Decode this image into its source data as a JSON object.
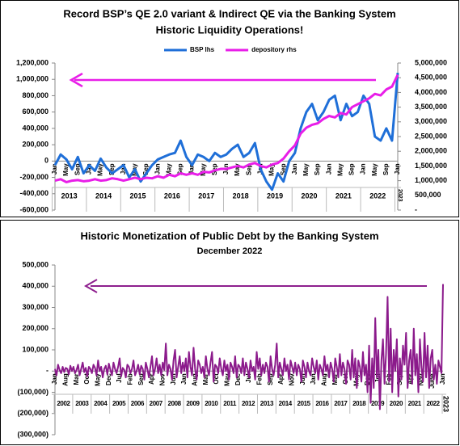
{
  "chart_data": [
    {
      "type": "line",
      "title": "Record BSP’s QE 2.0 variant & Indirect QE via the Banking System",
      "subtitle": "Historic Liquidity Operations!",
      "categories": [
        "Jan",
        null,
        "May",
        null,
        "Sep",
        null,
        "Jan",
        null,
        "May",
        null,
        "Sep",
        null,
        "Jan",
        null,
        "May",
        null,
        "Sep",
        null,
        "Jan",
        null,
        "May",
        null,
        "Sep",
        null,
        "Jan",
        null,
        "May",
        null,
        "Sep",
        null,
        "Jan",
        null,
        "May",
        null,
        "Sep",
        null,
        "Jan",
        null,
        "May",
        null,
        "Sep",
        null,
        "Jan",
        null,
        "May",
        null,
        "Sep",
        null,
        "Jan",
        null,
        "May",
        null,
        "Sep",
        null,
        "Jan",
        null,
        "May",
        null,
        "Sep",
        null,
        "Jan"
      ],
      "year_labels": [
        "2013",
        "2014",
        "2015",
        "2016",
        "2017",
        "2018",
        "2019",
        "2020",
        "2021",
        "2022",
        "2023"
      ],
      "series": [
        {
          "name": "BSP lhs",
          "color": "#1f6fd8",
          "axis": "y",
          "values": [
            -50000,
            80000,
            20000,
            -100000,
            50000,
            -150000,
            -50000,
            -120000,
            30000,
            -80000,
            -150000,
            -100000,
            -50000,
            -200000,
            -100000,
            -250000,
            -150000,
            -50000,
            20000,
            50000,
            80000,
            100000,
            250000,
            50000,
            -50000,
            80000,
            50000,
            0,
            100000,
            50000,
            80000,
            150000,
            200000,
            50000,
            100000,
            220000,
            -100000,
            -250000,
            -350000,
            -150000,
            -250000,
            0,
            100000,
            400000,
            600000,
            700000,
            500000,
            600000,
            750000,
            800000,
            500000,
            700000,
            550000,
            600000,
            800000,
            700000,
            300000,
            250000,
            400000,
            250000,
            1080000
          ]
        },
        {
          "name": "depository rhs",
          "color": "#e81ee8",
          "axis": "y2",
          "values": [
            1000000,
            1050000,
            950000,
            1000000,
            1020000,
            980000,
            1000000,
            1050000,
            1000000,
            1020000,
            1080000,
            1050000,
            1000000,
            1050000,
            1100000,
            1050000,
            1100000,
            1080000,
            1150000,
            1100000,
            1200000,
            1150000,
            1250000,
            1200000,
            1250000,
            1200000,
            1300000,
            1280000,
            1350000,
            1400000,
            1400000,
            1450000,
            1500000,
            1450000,
            1550000,
            1600000,
            1500000,
            1450000,
            1550000,
            1600000,
            1750000,
            2000000,
            2200000,
            2600000,
            2800000,
            2900000,
            2950000,
            3100000,
            3200000,
            3150000,
            3300000,
            3250000,
            3500000,
            3600000,
            3700000,
            3800000,
            3950000,
            3900000,
            4100000,
            4200000,
            4600000
          ]
        }
      ],
      "ylim": [
        -600000,
        1200000
      ],
      "yticks": [
        {
          "value": -600000,
          "label": "-600,000"
        },
        {
          "value": -400000,
          "label": "-400,000"
        },
        {
          "value": -200000,
          "label": "-200,000"
        },
        0,
        {
          "value": 200000,
          "label": "200,000"
        },
        {
          "value": 400000,
          "label": "400,000"
        },
        {
          "value": 600000,
          "label": "600,000"
        },
        {
          "value": 800000,
          "label": "800,000"
        },
        {
          "value": 1000000,
          "label": "1,000,000"
        },
        {
          "value": 1200000,
          "label": "1,200,000"
        }
      ],
      "y2lim": [
        0,
        5000000
      ],
      "y2ticks": [
        {
          "value": 0,
          "label": "-"
        },
        {
          "value": 500000,
          "label": "500,000"
        },
        {
          "value": 1000000,
          "label": "1,000,000"
        },
        {
          "value": 1500000,
          "label": "1,500,000"
        },
        {
          "value": 2000000,
          "label": "2,000,000"
        },
        {
          "value": 2500000,
          "label": "2,500,000"
        },
        {
          "value": 3000000,
          "label": "3,000,000"
        },
        {
          "value": 3500000,
          "label": "3,500,000"
        },
        {
          "value": 4000000,
          "label": "4,000,000"
        },
        {
          "value": 4500000,
          "label": "4,500,000"
        },
        {
          "value": 5000000,
          "label": "5,000,000"
        }
      ],
      "legend": "top"
    },
    {
      "type": "line",
      "title": "Historic Monetization of Public Debt by the Banking System",
      "subtitle": "December 2022",
      "categories": [
        "Jan",
        null,
        null,
        null,
        null,
        null,
        null,
        "Aug",
        null,
        null,
        null,
        null,
        null,
        null,
        "Mar",
        null,
        null,
        null,
        null,
        null,
        null,
        "Oct",
        null,
        null,
        null,
        null,
        null,
        null,
        "May",
        null,
        null,
        null,
        null,
        null,
        null,
        "Dec",
        null,
        null,
        null,
        null,
        null,
        null,
        "Jul",
        null,
        null,
        null,
        null,
        null,
        null,
        "Feb",
        null,
        null,
        null,
        null,
        null,
        null,
        "Sep",
        null,
        null,
        null,
        null,
        null,
        null,
        "Apr",
        null,
        null,
        null,
        null,
        null,
        null,
        "Nov",
        null,
        null,
        null,
        null,
        null,
        null,
        "Jun",
        null,
        null,
        null,
        null,
        null,
        null,
        "Jan",
        null,
        null,
        null,
        null,
        null,
        null,
        "Aug",
        null,
        null,
        null,
        null,
        null,
        null,
        "Mar",
        null,
        null,
        null,
        null,
        null,
        null,
        "Oct",
        null,
        null,
        null,
        null,
        null,
        null,
        "May",
        null,
        null,
        null,
        null,
        null,
        null,
        "Dec",
        null,
        null,
        null,
        null,
        null,
        null,
        "Jul",
        null,
        null,
        null,
        null,
        null,
        null,
        "Feb",
        null,
        null,
        null,
        null,
        null,
        null,
        "Sep",
        null,
        null,
        null,
        null,
        null,
        null,
        "Apr",
        null,
        null,
        null,
        null,
        null,
        null,
        "Nov",
        null,
        null,
        null,
        null,
        null,
        null,
        "Jun",
        null,
        null,
        null,
        null,
        null,
        null,
        "Jan",
        null,
        null,
        null,
        null,
        null,
        null,
        "Aug",
        null,
        null,
        null,
        null,
        null,
        null,
        "Mar",
        null,
        null,
        null,
        null,
        null,
        null,
        "Oct",
        null,
        null,
        null,
        null,
        null,
        null,
        "May",
        null,
        null,
        null,
        null,
        null,
        null,
        "Dec",
        null,
        null,
        null,
        null,
        null,
        null,
        "Jul",
        null,
        null,
        null,
        null,
        null,
        null,
        "Feb",
        null,
        null,
        null,
        null,
        null,
        null,
        "Sep",
        null,
        null,
        null,
        null,
        null,
        null,
        "Apr",
        null,
        null,
        null,
        null,
        null,
        null,
        "Nov",
        null,
        null,
        null,
        null,
        null,
        null,
        "June",
        null,
        null,
        null,
        null,
        null,
        null,
        "Jan"
      ],
      "year_labels": [
        "2002",
        "2003",
        "2004",
        "2005",
        "2006",
        "2007",
        "2008",
        "2009",
        "2010",
        "2011",
        "2012",
        "2013",
        "2014",
        "2015",
        "2016",
        "2017",
        "2018",
        "2019",
        "2020",
        "2021",
        "2022",
        "2023"
      ],
      "color": "#8b1a8b",
      "values": [
        10000,
        -20000,
        30000,
        5000,
        -10000,
        20000,
        -5000,
        15000,
        10000,
        -15000,
        25000,
        0,
        20000,
        -10000,
        5000,
        30000,
        -20000,
        10000,
        40000,
        -5000,
        15000,
        -25000,
        20000,
        10000,
        -10000,
        30000,
        15000,
        -20000,
        50000,
        0,
        20000,
        -30000,
        10000,
        25000,
        -15000,
        35000,
        5000,
        -20000,
        40000,
        10000,
        -10000,
        20000,
        60000,
        -25000,
        15000,
        5000,
        -30000,
        30000,
        20000,
        -10000,
        10000,
        50000,
        -20000,
        0,
        30000,
        -15000,
        25000,
        10000,
        -40000,
        40000,
        10000,
        -30000,
        20000,
        70000,
        -20000,
        10000,
        60000,
        -10000,
        30000,
        -20000,
        40000,
        5000,
        130000,
        -20000,
        30000,
        10000,
        -40000,
        50000,
        100000,
        -30000,
        20000,
        70000,
        -10000,
        40000,
        0,
        60000,
        -30000,
        90000,
        20000,
        -20000,
        110000,
        10000,
        -40000,
        50000,
        30000,
        -10000,
        20000,
        -30000,
        70000,
        10000,
        -20000,
        40000,
        90000,
        -50000,
        30000,
        20000,
        -10000,
        60000,
        10000,
        -20000,
        50000,
        0,
        30000,
        -40000,
        40000,
        20000,
        -10000,
        70000,
        -30000,
        30000,
        20000,
        -10000,
        60000,
        -20000,
        40000,
        10000,
        -30000,
        50000,
        0,
        20000,
        -40000,
        90000,
        10000,
        60000,
        -20000,
        30000,
        -10000,
        40000,
        20000,
        -50000,
        70000,
        10000,
        -20000,
        30000,
        130000,
        -30000,
        40000,
        10000,
        -20000,
        60000,
        0,
        30000,
        -40000,
        50000,
        20000,
        -10000,
        40000,
        -20000,
        30000,
        10000,
        -50000,
        50000,
        20000,
        -30000,
        40000,
        0,
        -20000,
        60000,
        20000,
        -10000,
        50000,
        -40000,
        30000,
        10000,
        -20000,
        70000,
        0,
        30000,
        -30000,
        40000,
        10000,
        -50000,
        60000,
        20000,
        -30000,
        80000,
        -20000,
        40000,
        10000,
        -60000,
        50000,
        30000,
        -40000,
        100000,
        -30000,
        60000,
        -80000,
        50000,
        20000,
        -50000,
        90000,
        -20000,
        30000,
        -100000,
        120000,
        -150000,
        60000,
        -80000,
        250000,
        -30000,
        100000,
        -180000,
        50000,
        150000,
        -60000,
        80000,
        350000,
        -50000,
        200000,
        -100000,
        100000,
        0,
        150000,
        -120000,
        60000,
        -40000,
        120000,
        30000,
        180000,
        -80000,
        50000,
        100000,
        -60000,
        200000,
        -20000,
        80000,
        -100000,
        150000,
        20000,
        -50000,
        180000,
        -30000,
        120000,
        -80000,
        60000,
        100000,
        -40000,
        30000,
        -60000,
        50000,
        20000,
        -10000,
        410000
      ],
      "ylim": [
        -300000,
        500000
      ],
      "yticks": [
        {
          "value": -300000,
          "label": "(300,000)"
        },
        {
          "value": -200000,
          "label": "(200,000)"
        },
        {
          "value": -100000,
          "label": "(100,000)"
        },
        {
          "value": 0,
          "label": "-"
        },
        {
          "value": 100000,
          "label": "100,000"
        },
        {
          "value": 200000,
          "label": "200,000"
        },
        {
          "value": 300000,
          "label": "300,000"
        },
        {
          "value": 400000,
          "label": "400,000"
        },
        {
          "value": 500000,
          "label": "500,000"
        }
      ]
    }
  ]
}
